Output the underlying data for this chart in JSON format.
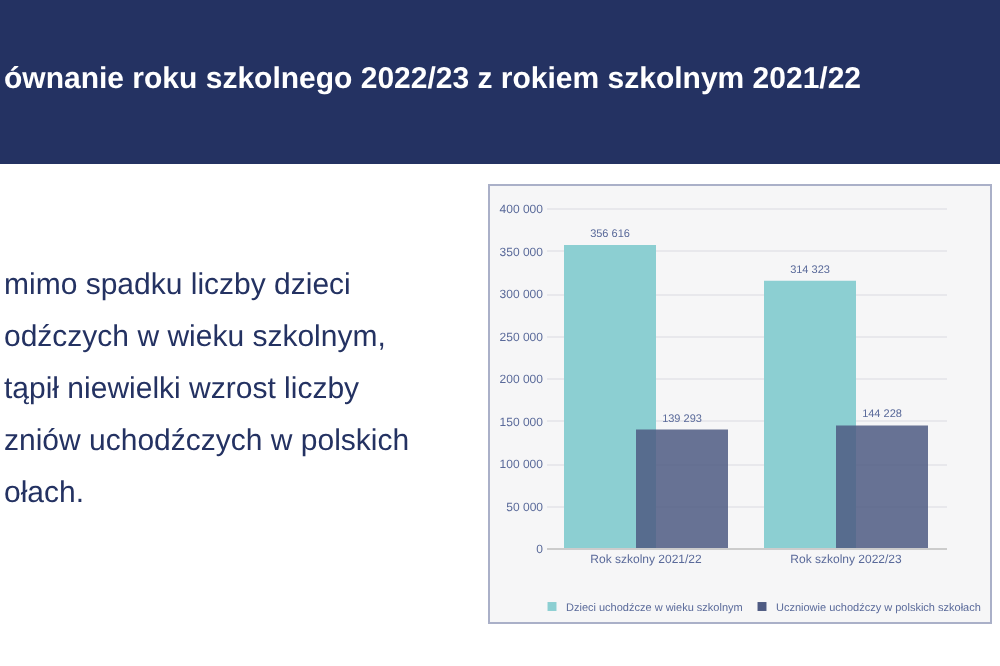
{
  "chart_data": {
    "type": "bar",
    "title": "ównanie roku szkolnego 2022/23 z rokiem szkolnym 2021/22",
    "annotations": [
      "mimo spadku liczby dzieci",
      "odźczych w wieku szkolnym,",
      "tąpił niewielki wzrost liczby",
      "zniów uchodźczych w polskich",
      "ołach."
    ],
    "categories": [
      "Rok szkolny 2021/22",
      "Rok szkolny 2022/23"
    ],
    "series": [
      {
        "name": "Dzieci uchodźcze w wieku szkolnym",
        "color": "#8ccfd2",
        "values": [
          356616,
          314323
        ]
      },
      {
        "name": "Uczniowie uchodźczy w polskich szkołach",
        "color": "#4e5a82",
        "values": [
          139293,
          144228
        ]
      }
    ],
    "ylim": [
      0,
      400000
    ],
    "yticks": [
      0,
      50000,
      100000,
      150000,
      200000,
      250000,
      300000,
      350000,
      400000
    ],
    "grid": "y",
    "legend": "bottom",
    "data_labels": true
  }
}
